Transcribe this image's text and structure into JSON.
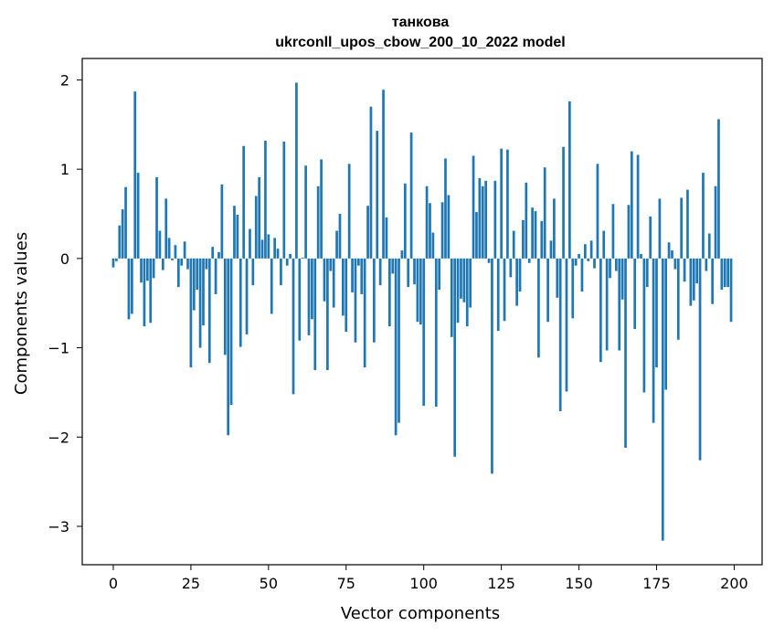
{
  "chart_data": {
    "type": "bar",
    "title": "танкова",
    "subtitle": "ukrconll_upos_cbow_200_10_2022 model",
    "xlabel": "Vector components",
    "ylabel": "Components values",
    "xlim": [
      -10,
      209
    ],
    "ylim": [
      -3.43,
      2.24
    ],
    "xticks": [
      0,
      25,
      50,
      75,
      100,
      125,
      150,
      175,
      200
    ],
    "yticks": [
      2,
      1,
      0,
      -1,
      -2,
      -3
    ],
    "ytick_labels": [
      "2",
      "1",
      "0",
      "−1",
      "−2",
      "−3"
    ],
    "grid": false,
    "bar_color": "#1f77b4",
    "values": [
      -0.1,
      -0.03,
      0.37,
      0.55,
      0.8,
      -0.68,
      -0.62,
      1.87,
      0.96,
      -0.27,
      -0.76,
      -0.25,
      -0.72,
      -0.22,
      0.91,
      0.31,
      -0.13,
      0.67,
      0.23,
      -0.02,
      0.15,
      -0.32,
      -0.08,
      0.19,
      -0.12,
      -1.22,
      -0.58,
      -0.35,
      -1.0,
      -0.75,
      -0.12,
      -1.17,
      0.13,
      -0.4,
      0.07,
      0.83,
      -1.08,
      -1.98,
      -1.64,
      0.59,
      0.49,
      -0.99,
      1.26,
      -0.85,
      0.33,
      -0.3,
      0.7,
      0.91,
      0.21,
      1.32,
      0.27,
      -0.62,
      0.23,
      0.11,
      -0.3,
      1.31,
      -0.08,
      0.05,
      -1.52,
      1.97,
      -0.92,
      0.01,
      1.04,
      -0.86,
      -0.68,
      -1.25,
      0.81,
      1.11,
      -0.48,
      -1.25,
      -0.14,
      -0.55,
      0.31,
      0.5,
      -0.64,
      -0.82,
      1.06,
      -0.38,
      -0.94,
      -0.08,
      -0.4,
      -1.22,
      0.59,
      1.7,
      -0.94,
      1.43,
      -0.3,
      1.89,
      0.46,
      -0.76,
      -0.17,
      -1.98,
      -1.84,
      0.09,
      0.84,
      -0.32,
      1.41,
      -0.29,
      -0.71,
      -0.74,
      -1.65,
      0.81,
      0.62,
      0.29,
      -1.66,
      -0.35,
      0.63,
      1.12,
      0.71,
      -0.88,
      -2.22,
      -0.72,
      -0.45,
      -0.49,
      -0.76,
      -0.55,
      1.15,
      0.52,
      0.9,
      0.81,
      0.87,
      -0.05,
      -2.41,
      0.87,
      -0.81,
      1.23,
      -0.7,
      1.22,
      -0.21,
      0.31,
      -0.53,
      -0.37,
      0.43,
      0.85,
      -0.05,
      0.57,
      0.53,
      -1.11,
      0.42,
      1.02,
      -0.71,
      0.2,
      0.67,
      -0.44,
      -1.71,
      1.25,
      -1.49,
      1.76,
      -0.67,
      -0.08,
      0.05,
      -0.37,
      0.16,
      -0.03,
      0.2,
      -0.11,
      1.06,
      -1.16,
      0.31,
      -1.03,
      -0.22,
      0.61,
      -0.14,
      -1.03,
      -0.46,
      -2.12,
      0.6,
      1.2,
      -0.79,
      1.16,
      0.05,
      -1.5,
      -0.32,
      0.47,
      -1.84,
      -1.22,
      0.67,
      -3.16,
      -1.47,
      0.18,
      0.09,
      -0.12,
      -0.91,
      0.68,
      -0.26,
      0.77,
      -0.53,
      -0.47,
      -0.28,
      -2.26,
      0.96,
      -0.14,
      0.28,
      -0.51,
      0.81,
      1.56,
      -0.35,
      -0.32,
      -0.32,
      -0.71
    ]
  }
}
